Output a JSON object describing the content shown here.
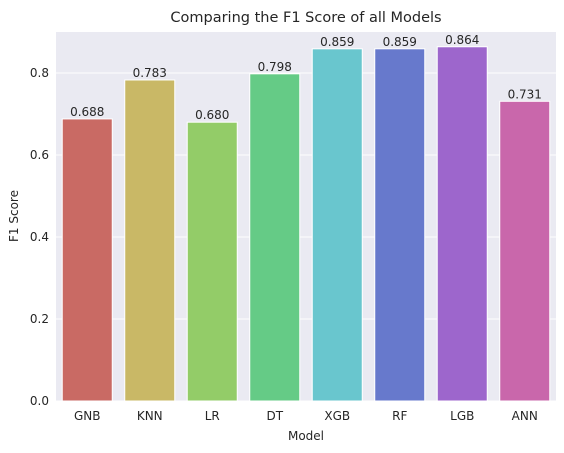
{
  "chart_data": {
    "type": "bar",
    "title": "Comparing the F1 Score of all Models",
    "xlabel": "Model",
    "ylabel": "F1 Score",
    "categories": [
      "GNB",
      "KNN",
      "LR",
      "DT",
      "XGB",
      "RF",
      "LGB",
      "ANN"
    ],
    "values": [
      0.688,
      0.783,
      0.68,
      0.798,
      0.859,
      0.859,
      0.864,
      0.731
    ],
    "value_labels": [
      "0.688",
      "0.783",
      "0.680",
      "0.798",
      "0.859",
      "0.859",
      "0.864",
      "0.731"
    ],
    "colors": [
      "#c96a64",
      "#c9b866",
      "#93cc68",
      "#65cb86",
      "#69c6ce",
      "#6779cc",
      "#9d66cc",
      "#c967ab"
    ],
    "ylim": [
      0,
      0.9
    ],
    "yticks": [
      0,
      0.2,
      0.4,
      0.6,
      0.8
    ],
    "ytick_labels": [
      "0.0",
      "0.2",
      "0.4",
      "0.6",
      "0.8"
    ],
    "grid": true,
    "background": "#eaeaf2",
    "grid_color": "#ffffff"
  }
}
